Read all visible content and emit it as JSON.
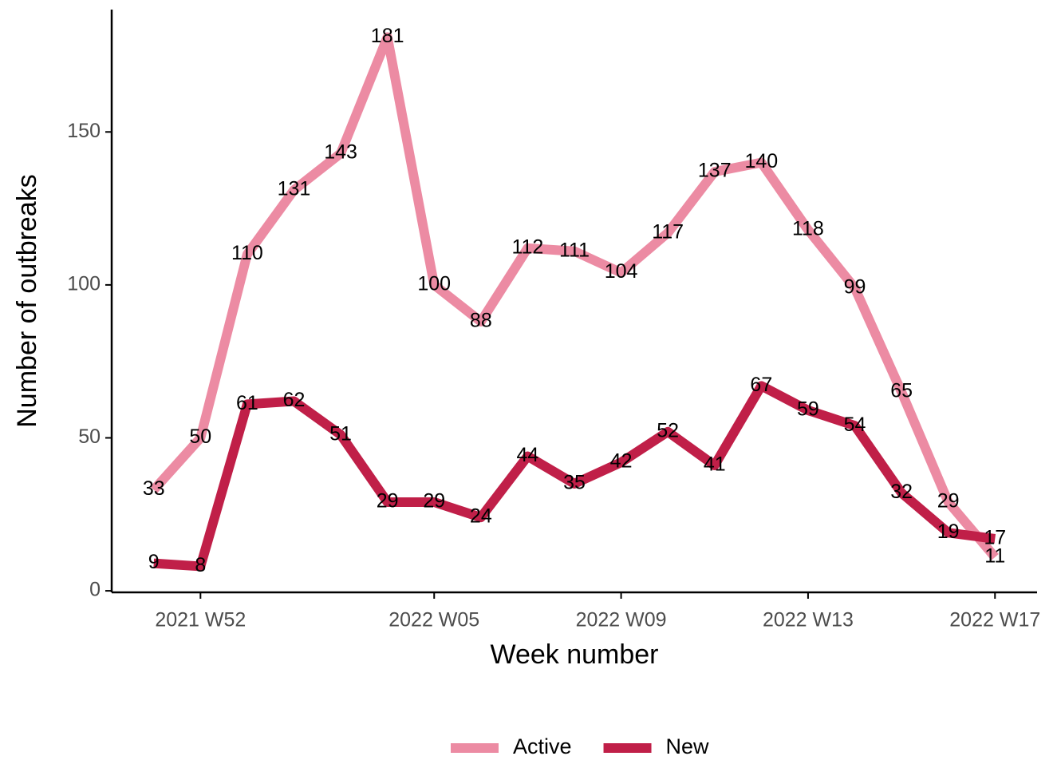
{
  "chart_data": {
    "type": "line",
    "x_label": "Week number",
    "y_label": "Number of outbreaks",
    "categories": [
      null,
      "2021 W52",
      null,
      null,
      null,
      null,
      "2022 W05",
      null,
      null,
      null,
      "2022 W09",
      null,
      null,
      null,
      "2022 W13",
      null,
      null,
      null,
      "2022 W17"
    ],
    "series": [
      {
        "name": "Active",
        "color": "#ec8ba3",
        "values": [
          33,
          50,
          110,
          131,
          143,
          181,
          100,
          88,
          112,
          111,
          104,
          117,
          137,
          140,
          118,
          99,
          65,
          29,
          11
        ]
      },
      {
        "name": "New",
        "color": "#c01f48",
        "values": [
          9,
          8,
          61,
          62,
          51,
          29,
          29,
          24,
          44,
          35,
          42,
          52,
          41,
          67,
          59,
          54,
          32,
          19,
          17
        ]
      }
    ],
    "ylim": [
      -0.5,
      190
    ],
    "yticks": [
      0,
      50,
      100,
      150
    ],
    "grid": false,
    "legend": "bottom"
  }
}
